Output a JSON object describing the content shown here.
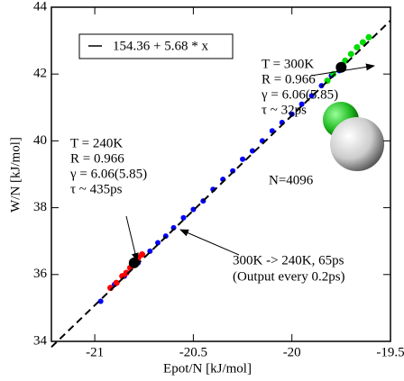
{
  "chart_data": {
    "type": "scatter",
    "x_label": "Epot/N  [kJ/mol]",
    "y_label": "W/N  [kJ/mol]",
    "xlim": [
      -21.22,
      -19.5
    ],
    "ylim": [
      34,
      44
    ],
    "xticks": [
      -21,
      -20.5,
      -20,
      -19.5
    ],
    "yticks": [
      34,
      36,
      38,
      40,
      42,
      44
    ],
    "fit": {
      "name": "154.36 + 5.68 * x",
      "color": "#000000",
      "x": [
        -21.22,
        -19.5
      ],
      "y": [
        33.83,
        43.6
      ]
    },
    "series": [
      {
        "color": "#0000ff",
        "x": [
          -20.97,
          -20.9,
          -20.85,
          -20.78,
          -20.72,
          -20.68,
          -20.64,
          -20.6,
          -20.55,
          -20.5,
          -20.45,
          -20.4,
          -20.35,
          -20.3,
          -20.25,
          -20.2,
          -20.15,
          -20.1,
          -20.05,
          -20.0,
          -19.95,
          -19.9,
          -19.85,
          -19.8,
          -19.76
        ],
        "values": [
          35.2,
          35.7,
          35.95,
          36.35,
          36.7,
          36.95,
          37.15,
          37.4,
          37.7,
          37.95,
          38.2,
          38.55,
          38.85,
          39.1,
          39.45,
          39.7,
          40.0,
          40.3,
          40.55,
          40.8,
          41.1,
          41.35,
          41.65,
          41.95,
          42.1
        ]
      },
      {
        "color": "#ff0000",
        "x": [
          -20.92,
          -20.89,
          -20.86,
          -20.84,
          -20.82,
          -20.8,
          -20.78,
          -20.76
        ],
        "values": [
          35.6,
          35.75,
          35.95,
          36.05,
          36.2,
          36.35,
          36.5,
          36.6
        ]
      },
      {
        "color": "#00dd00",
        "x": [
          -19.82,
          -19.79,
          -19.76,
          -19.73,
          -19.7,
          -19.67,
          -19.64,
          -19.61
        ],
        "values": [
          41.8,
          42.0,
          42.2,
          42.4,
          42.6,
          42.8,
          42.95,
          43.1
        ]
      },
      {
        "color": "#000000",
        "x": [
          -20.8,
          -19.75
        ],
        "values": [
          36.35,
          42.2
        ]
      }
    ],
    "annotations": [
      "T = 300K",
      "R = 0.966",
      "γ = 6.06(5.85)",
      "τ ~ 32ps",
      "T = 240K",
      "R = 0.966",
      "γ = 6.06(5.85)",
      "τ ~ 435ps",
      "N=4096",
      "300K -> 240K, 65ps",
      "(Output every 0.2ps)"
    ]
  }
}
